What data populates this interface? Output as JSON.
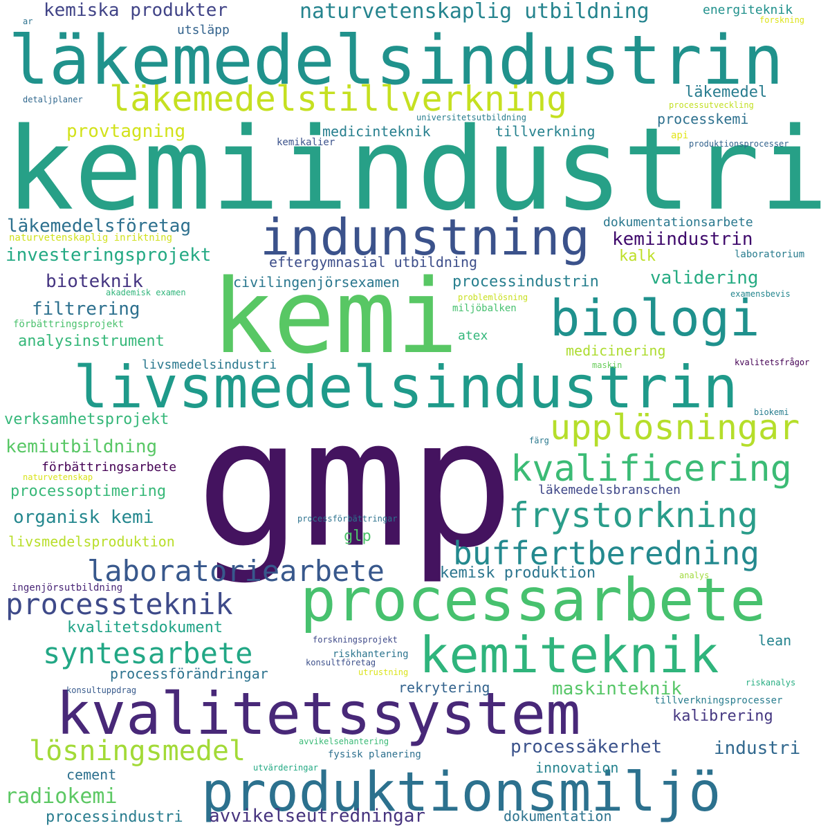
{
  "words": [
    {
      "text": "gmp",
      "color": "#44135f"
    },
    {
      "text": "kemiindustri",
      "color": "#27a087"
    },
    {
      "text": "läkemedelsindustrin",
      "color": "#20928c"
    },
    {
      "text": "kemi",
      "color": "#58c764"
    },
    {
      "text": "livsmedelsindustrin",
      "color": "#1f9a8a"
    },
    {
      "text": "processarbete",
      "color": "#47c16e"
    },
    {
      "text": "kvalitetssystem",
      "color": "#482878"
    },
    {
      "text": "produktionsmiljö",
      "color": "#2c718e"
    },
    {
      "text": "indunstning",
      "color": "#3b528b"
    },
    {
      "text": "biologi",
      "color": "#1f918d"
    },
    {
      "text": "kemiteknik",
      "color": "#2fb47c"
    },
    {
      "text": "läkemedelstillverkning",
      "color": "#c5e021"
    },
    {
      "text": "upplösningar",
      "color": "#b5de2b"
    },
    {
      "text": "kvalificering",
      "color": "#3bbb75"
    },
    {
      "text": "frystorkning",
      "color": "#2a9d8a"
    },
    {
      "text": "buffertberedning",
      "color": "#23898e"
    },
    {
      "text": "laboratoriearbete",
      "color": "#38588c"
    },
    {
      "text": "processteknik",
      "color": "#3e4a89"
    },
    {
      "text": "syntesarbete",
      "color": "#22a785"
    },
    {
      "text": "lösningsmedel",
      "color": "#a2da37"
    },
    {
      "text": "radiokemi",
      "color": "#5cc863"
    },
    {
      "text": "kemiska produkter",
      "color": "#414487"
    },
    {
      "text": "naturvetenskaplig utbildning",
      "color": "#25848e"
    },
    {
      "text": "energiteknik",
      "color": "#21918c"
    },
    {
      "text": "ar",
      "color": "#2c728e"
    },
    {
      "text": "forskning",
      "color": "#dde318"
    },
    {
      "text": "utsläpp",
      "color": "#33638d"
    },
    {
      "text": "läkemedel",
      "color": "#287c8e"
    },
    {
      "text": "detaljplaner",
      "color": "#31688e"
    },
    {
      "text": "universitetsutbildning",
      "color": "#287d8e"
    },
    {
      "text": "processutveckling",
      "color": "#c2df23"
    },
    {
      "text": "provtagning",
      "color": "#d2e21b"
    },
    {
      "text": "medicinteknik",
      "color": "#277f8e"
    },
    {
      "text": "tillverkning",
      "color": "#26828e"
    },
    {
      "text": "processkemi",
      "color": "#2d708e"
    },
    {
      "text": "api",
      "color": "#e2e418"
    },
    {
      "text": "kemikalier",
      "color": "#3b528b"
    },
    {
      "text": "produktionsprocesser",
      "color": "#33638d"
    },
    {
      "text": "läkemedelsföretag",
      "color": "#2d708e"
    },
    {
      "text": "dokumentationsarbete",
      "color": "#2a788e"
    },
    {
      "text": "naturvetenskaplig inriktning",
      "color": "#d0e11c"
    },
    {
      "text": "kemiindustrin",
      "color": "#3e096b"
    },
    {
      "text": "investeringsprojekt",
      "color": "#23a983"
    },
    {
      "text": "kalk",
      "color": "#bddf26"
    },
    {
      "text": "eftergymnasial utbildning",
      "color": "#3d4e8a"
    },
    {
      "text": "laboratorium",
      "color": "#287c8e"
    },
    {
      "text": "bioteknik",
      "color": "#453581"
    },
    {
      "text": "civilingenjörsexamen",
      "color": "#2a778e"
    },
    {
      "text": "processindustrin",
      "color": "#277f8e"
    },
    {
      "text": "validering",
      "color": "#25ab82"
    },
    {
      "text": "akademisk examen",
      "color": "#31b57b"
    },
    {
      "text": "problemlösning",
      "color": "#c8e020"
    },
    {
      "text": "examensbevis",
      "color": "#24868e"
    },
    {
      "text": "filtrering",
      "color": "#2d708e"
    },
    {
      "text": "miljöbalken",
      "color": "#46c06f"
    },
    {
      "text": "förbättringsprojekt",
      "color": "#4ac16d"
    },
    {
      "text": "analysinstrument",
      "color": "#35b779"
    },
    {
      "text": "atex",
      "color": "#32b67a"
    },
    {
      "text": "medicinering",
      "color": "#addc30"
    },
    {
      "text": "livsmedelsindustri",
      "color": "#2a788e"
    },
    {
      "text": "maskin",
      "color": "#69cd5b"
    },
    {
      "text": "kvalitetsfrågor",
      "color": "#440154"
    },
    {
      "text": "verksamhetsprojekt",
      "color": "#35b779"
    },
    {
      "text": "biokemi",
      "color": "#287d8e"
    },
    {
      "text": "kemiutbildning",
      "color": "#58c765"
    },
    {
      "text": "färg",
      "color": "#2a788e"
    },
    {
      "text": "förbättringsarbete",
      "color": "#440154"
    },
    {
      "text": "naturvetenskap",
      "color": "#d8e219"
    },
    {
      "text": "processoptimering",
      "color": "#37b878"
    },
    {
      "text": "läkemedelsbranschen",
      "color": "#3f4788"
    },
    {
      "text": "organisk kemi",
      "color": "#24878e"
    },
    {
      "text": "processförbättringar",
      "color": "#2c728e"
    },
    {
      "text": "glp",
      "color": "#4ec36b"
    },
    {
      "text": "livsmedelsproduktion",
      "color": "#b8de29"
    },
    {
      "text": "kemisk produktion",
      "color": "#2b758e"
    },
    {
      "text": "ingenjörsutbildning",
      "color": "#482576"
    },
    {
      "text": "analys",
      "color": "#9fda3a"
    },
    {
      "text": "kvalitetsdokument",
      "color": "#20a386"
    },
    {
      "text": "forskningsprojekt",
      "color": "#3e4989"
    },
    {
      "text": "lean",
      "color": "#25848e"
    },
    {
      "text": "riskhantering",
      "color": "#2b748e"
    },
    {
      "text": "konsultföretag",
      "color": "#3c4f8a"
    },
    {
      "text": "processförändringar",
      "color": "#2c728e"
    },
    {
      "text": "utrustning",
      "color": "#dae319"
    },
    {
      "text": "riskanalys",
      "color": "#26ad81"
    },
    {
      "text": "rekrytering",
      "color": "#33638d"
    },
    {
      "text": "maskinteknik",
      "color": "#56c667"
    },
    {
      "text": "konsultuppdrag",
      "color": "#375a8c"
    },
    {
      "text": "tillverkningsprocesser",
      "color": "#287c8e"
    },
    {
      "text": "kalibrering",
      "color": "#453781"
    },
    {
      "text": "avvikelsehantering",
      "color": "#3aba76"
    },
    {
      "text": "processäkerhet",
      "color": "#3b528b"
    },
    {
      "text": "industri",
      "color": "#31688e"
    },
    {
      "text": "fysisk planering",
      "color": "#2d708e"
    },
    {
      "text": "cement",
      "color": "#2d708e"
    },
    {
      "text": "utvärderingar",
      "color": "#23a983"
    },
    {
      "text": "innovation",
      "color": "#25838e"
    },
    {
      "text": "processindustri",
      "color": "#287c8e"
    },
    {
      "text": "avvikelseutredningar",
      "color": "#46337e"
    },
    {
      "text": "dokumentation",
      "color": "#2c738e"
    }
  ]
}
